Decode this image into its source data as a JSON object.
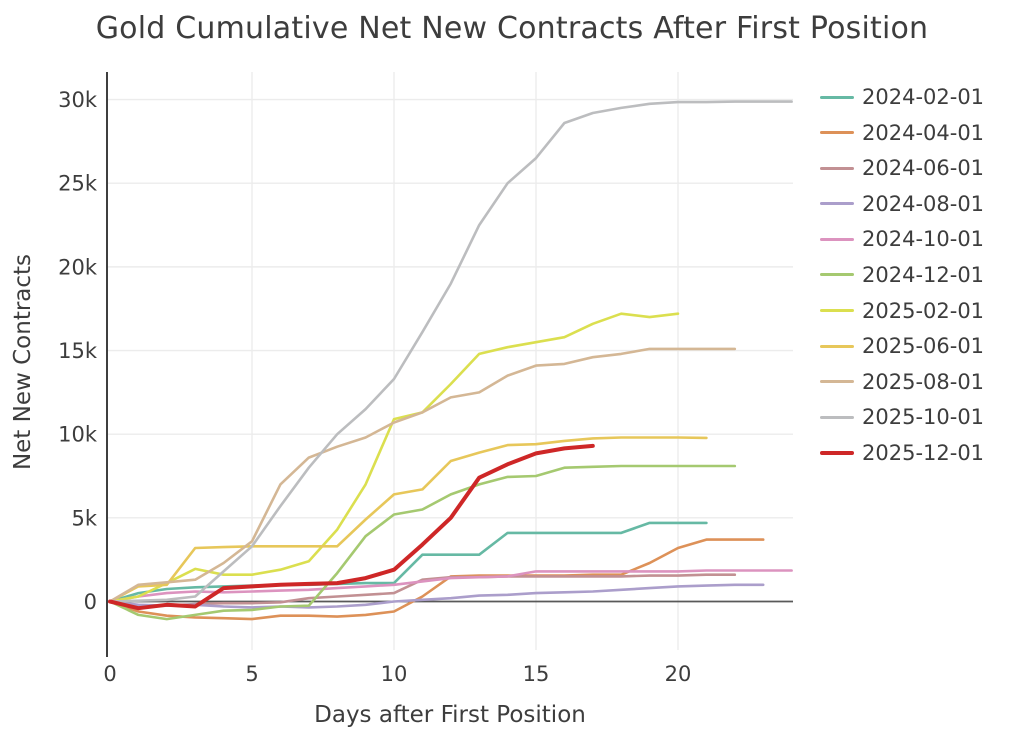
{
  "chart_data": {
    "type": "line",
    "title": "Gold Cumulative Net New Contracts After First Position",
    "xlabel": "Days after First Position",
    "ylabel": "Net New Contracts",
    "x_unit": "day index from first position (0..24)",
    "x_ticks": [
      {
        "value": 0,
        "label": "0"
      },
      {
        "value": 5,
        "label": "5"
      },
      {
        "value": 10,
        "label": "10"
      },
      {
        "value": 15,
        "label": "15"
      },
      {
        "value": 20,
        "label": "20"
      }
    ],
    "y_ticks": [
      {
        "value": 0,
        "label": "0"
      },
      {
        "value": 5000,
        "label": "5k"
      },
      {
        "value": 10000,
        "label": "10k"
      },
      {
        "value": 15000,
        "label": "15k"
      },
      {
        "value": 20000,
        "label": "20k"
      },
      {
        "value": 25000,
        "label": "25k"
      },
      {
        "value": 30000,
        "label": "30k"
      }
    ],
    "xlim": [
      0,
      24.5
    ],
    "ylim": [
      -3300,
      31700
    ],
    "grid": true,
    "legend_position": "right",
    "zero_line": true,
    "series": [
      {
        "name": "2024-02-01",
        "color": "#66b9a4",
        "line_width": 2.6,
        "values": [
          0,
          500,
          750,
          850,
          900,
          950,
          1000,
          1000,
          1050,
          1100,
          1100,
          2800,
          2800,
          2800,
          4100,
          4100,
          4100,
          4100,
          4100,
          4700,
          4700,
          4700
        ]
      },
      {
        "name": "2024-04-01",
        "color": "#dd9158",
        "line_width": 2.6,
        "values": [
          0,
          -600,
          -850,
          -950,
          -1000,
          -1050,
          -850,
          -850,
          -900,
          -800,
          -600,
          300,
          1500,
          1550,
          1550,
          1550,
          1550,
          1600,
          1600,
          2300,
          3200,
          3700,
          3700,
          3700
        ]
      },
      {
        "name": "2024-06-01",
        "color": "#c29093",
        "line_width": 2.6,
        "values": [
          0,
          -300,
          -250,
          -150,
          -100,
          -100,
          -50,
          200,
          300,
          400,
          500,
          1300,
          1450,
          1450,
          1500,
          1500,
          1500,
          1500,
          1500,
          1550,
          1550,
          1600,
          1600
        ]
      },
      {
        "name": "2024-08-01",
        "color": "#ab9ecb",
        "line_width": 2.6,
        "values": [
          0,
          -200,
          -250,
          -200,
          -300,
          -350,
          -300,
          -350,
          -300,
          -200,
          0,
          100,
          200,
          350,
          400,
          500,
          550,
          600,
          700,
          800,
          900,
          950,
          1000,
          1000
        ]
      },
      {
        "name": "2024-10-01",
        "color": "#dc93bf",
        "line_width": 2.6,
        "values": [
          0,
          300,
          500,
          600,
          550,
          600,
          650,
          700,
          800,
          900,
          1000,
          1200,
          1400,
          1450,
          1500,
          1800,
          1800,
          1800,
          1800,
          1800,
          1800,
          1850,
          1850,
          1850,
          1850
        ]
      },
      {
        "name": "2024-12-01",
        "color": "#a5c970",
        "line_width": 2.6,
        "values": [
          0,
          -800,
          -1050,
          -800,
          -550,
          -500,
          -300,
          -250,
          1700,
          3900,
          5200,
          5500,
          6400,
          7000,
          7450,
          7500,
          8000,
          8050,
          8100,
          8100,
          8100,
          8100,
          8100
        ]
      },
      {
        "name": "2025-02-01",
        "color": "#dbdf4f",
        "line_width": 2.6,
        "values": [
          0,
          300,
          1100,
          1950,
          1600,
          1600,
          1900,
          2400,
          4300,
          7000,
          10900,
          11300,
          13000,
          14800,
          15200,
          15500,
          15800,
          16600,
          17200,
          17000,
          17200
        ]
      },
      {
        "name": "2025-06-01",
        "color": "#e7c75a",
        "line_width": 2.6,
        "values": [
          0,
          900,
          1000,
          3200,
          3250,
          3300,
          3300,
          3300,
          3300,
          4900,
          6400,
          6700,
          8400,
          8900,
          9350,
          9400,
          9600,
          9750,
          9800,
          9800,
          9800,
          9780
        ]
      },
      {
        "name": "2025-08-01",
        "color": "#d4b795",
        "line_width": 2.6,
        "values": [
          0,
          1000,
          1150,
          1300,
          2300,
          3600,
          7000,
          8600,
          9250,
          9800,
          10700,
          11300,
          12200,
          12500,
          13500,
          14100,
          14200,
          14600,
          14800,
          15100,
          15100,
          15100,
          15100
        ]
      },
      {
        "name": "2025-10-01",
        "color": "#bcbdbf",
        "line_width": 2.6,
        "values": [
          0,
          50,
          100,
          300,
          1800,
          3300,
          5700,
          8000,
          10000,
          11500,
          13300,
          16100,
          19000,
          22500,
          25000,
          26500,
          28600,
          29200,
          29500,
          29750,
          29850,
          29850,
          29880,
          29880,
          29880
        ]
      },
      {
        "name": "2025-12-01",
        "color": "#ce2727",
        "line_width": 4,
        "values": [
          0,
          -400,
          -200,
          -300,
          800,
          900,
          1000,
          1050,
          1100,
          1400,
          1900,
          3400,
          5000,
          7400,
          8200,
          8850,
          9150,
          9300
        ]
      }
    ]
  }
}
